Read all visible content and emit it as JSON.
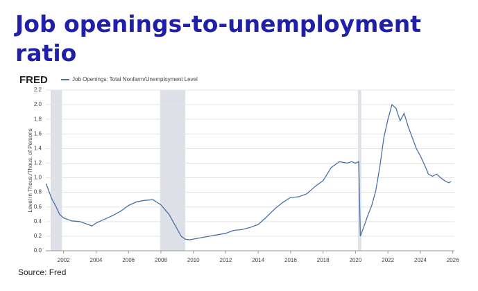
{
  "chart_data": {
    "type": "line",
    "title": "Job openings-to-unemployment ratio",
    "brand": "FRED",
    "y_label": "Level in Thous./Thous. of Persons",
    "source": "Source: Fred",
    "xlim": [
      2000.9,
      2026.1
    ],
    "xticks": [
      2002,
      2004,
      2006,
      2008,
      2010,
      2012,
      2014,
      2016,
      2018,
      2020,
      2022,
      2024,
      2026
    ],
    "ylim": [
      0,
      2.2
    ],
    "yticks": [
      {
        "value": 0,
        "label": "0.0"
      },
      0.2,
      0.4,
      0.6,
      0.8,
      {
        "value": 1,
        "label": "1.0"
      },
      1.2,
      1.4,
      1.6,
      1.8,
      {
        "value": 2,
        "label": "2.0"
      },
      2.2
    ],
    "grid": true,
    "recession_color": "#dde1e7",
    "recessions": [
      [
        2001.2,
        2001.9
      ],
      [
        2007.95,
        2009.5
      ],
      [
        2020.15,
        2020.35
      ]
    ],
    "x": [
      2000.92,
      2001.25,
      2001.5,
      2001.75,
      2002.0,
      2002.5,
      2003.0,
      2003.5,
      2003.75,
      2004.0,
      2004.5,
      2005.0,
      2005.5,
      2006.0,
      2006.5,
      2007.0,
      2007.5,
      2008.0,
      2008.5,
      2009.0,
      2009.25,
      2009.5,
      2009.75,
      2010.0,
      2010.5,
      2011.0,
      2011.5,
      2012.0,
      2012.5,
      2013.0,
      2013.5,
      2014.0,
      2014.5,
      2015.0,
      2015.5,
      2016.0,
      2016.5,
      2017.0,
      2017.5,
      2018.0,
      2018.5,
      2019.0,
      2019.5,
      2019.75,
      2020.0,
      2020.2,
      2020.3,
      2020.5,
      2020.75,
      2021.0,
      2021.25,
      2021.5,
      2021.75,
      2022.0,
      2022.25,
      2022.5,
      2022.75,
      2023.0,
      2023.25,
      2023.5,
      2023.75,
      2024.0,
      2024.25,
      2024.5,
      2024.75,
      2025.0,
      2025.25,
      2025.5,
      2025.75,
      2025.9
    ],
    "series": [
      {
        "name": "Job Openings: Total Nonfarm/Unemployment Level",
        "color": "#4a6fa5",
        "values": [
          0.92,
          0.72,
          0.62,
          0.5,
          0.45,
          0.41,
          0.4,
          0.36,
          0.34,
          0.38,
          0.43,
          0.48,
          0.54,
          0.62,
          0.67,
          0.69,
          0.7,
          0.63,
          0.5,
          0.3,
          0.2,
          0.16,
          0.15,
          0.16,
          0.18,
          0.2,
          0.22,
          0.24,
          0.28,
          0.29,
          0.32,
          0.36,
          0.46,
          0.57,
          0.66,
          0.73,
          0.74,
          0.78,
          0.88,
          0.96,
          1.14,
          1.22,
          1.2,
          1.22,
          1.2,
          1.22,
          0.2,
          0.32,
          0.48,
          0.62,
          0.82,
          1.15,
          1.55,
          1.8,
          2.0,
          1.95,
          1.78,
          1.88,
          1.7,
          1.55,
          1.4,
          1.3,
          1.18,
          1.05,
          1.02,
          1.05,
          1.0,
          0.96,
          0.93,
          0.95
        ]
      }
    ]
  }
}
